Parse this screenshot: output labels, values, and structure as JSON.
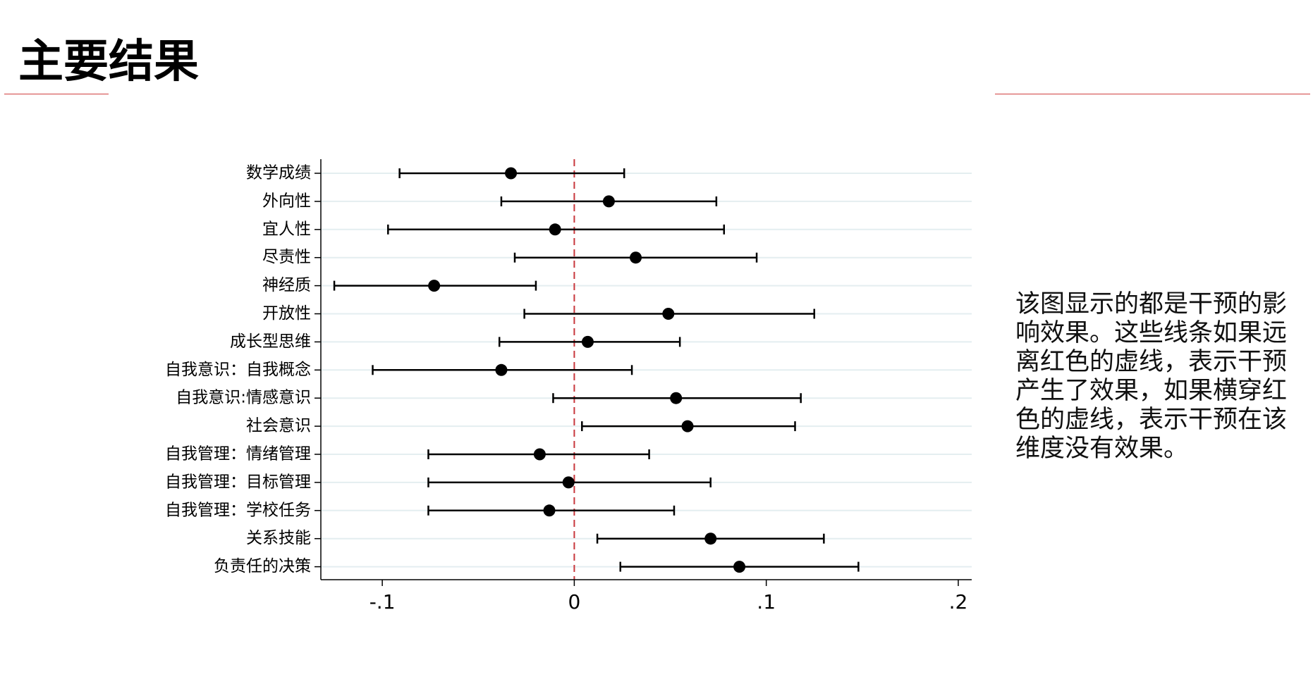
{
  "title": "主要结果",
  "description": "该图显示的都是干预的影响效果。这些线条如果远离红色的虚线，表示干预产生了效果，如果横穿红色的虚线，表示干预在该维度没有效果。",
  "chart_data": {
    "type": "coefplot",
    "categories": [
      "数学成绩",
      "外向性",
      "宜人性",
      "尽责性",
      "神经质",
      "开放性",
      "成长型思维",
      "自我意识：自我概念",
      "自我意识:情感意识",
      "社会意识",
      "自我管理：情绪管理",
      "自我管理：目标管理",
      "自我管理：学校任务",
      "关系技能",
      "负责任的决策"
    ],
    "values": [
      -0.033,
      0.018,
      -0.01,
      0.032,
      -0.073,
      0.049,
      0.007,
      -0.038,
      0.053,
      0.059,
      -0.018,
      -0.003,
      -0.013,
      0.071,
      0.086
    ],
    "ci_low": [
      -0.091,
      -0.038,
      -0.097,
      -0.031,
      -0.125,
      -0.026,
      -0.039,
      -0.105,
      -0.011,
      0.004,
      -0.076,
      -0.076,
      -0.076,
      0.012,
      0.024
    ],
    "ci_high": [
      0.026,
      0.074,
      0.078,
      0.095,
      -0.02,
      0.125,
      0.055,
      0.03,
      0.118,
      0.115,
      0.039,
      0.071,
      0.052,
      0.13,
      0.148
    ],
    "xlim": [
      -0.132,
      0.207
    ],
    "xticks": [
      {
        "value": -0.1,
        "label": "-.1"
      },
      0,
      {
        "value": 0.1,
        "label": ".1"
      },
      {
        "value": 0.2,
        "label": ".2"
      }
    ],
    "reference_line": 0,
    "reference_color": "#c8363c",
    "color": "#000000",
    "grid": true,
    "grid_color": "#e4eef0"
  }
}
